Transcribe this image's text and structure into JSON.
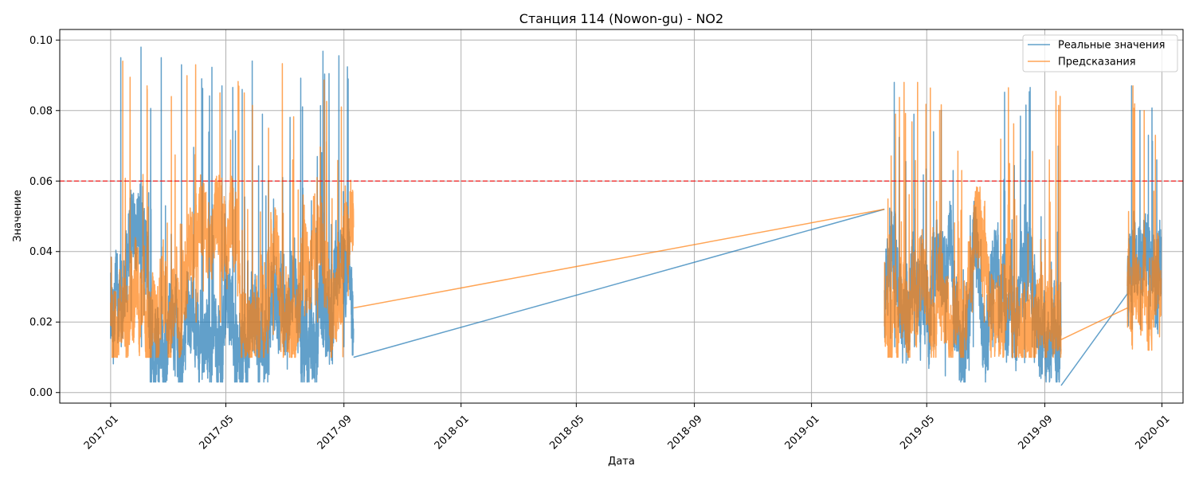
{
  "chart_data": {
    "type": "line",
    "title": "Станция 114 (Nowon-gu) - NO2",
    "xlabel": "Дата",
    "ylabel": "Значение",
    "xlim": [
      "2016-11-09",
      "2020-01-23"
    ],
    "ylim": [
      -0.003,
      0.103
    ],
    "x_ticks": [
      "2017-01",
      "2017-05",
      "2017-09",
      "2018-01",
      "2018-05",
      "2018-09",
      "2019-01",
      "2019-05",
      "2019-09",
      "2020-01"
    ],
    "y_ticks": [
      "0.00",
      "0.02",
      "0.04",
      "0.06",
      "0.08",
      "0.10"
    ],
    "grid": true,
    "legend_position": "top-right",
    "threshold": {
      "y": 0.06,
      "color": "#ff0000",
      "style": "dashed"
    },
    "colors": {
      "actual": "#1f77b4",
      "predicted": "#ff7f0e"
    },
    "series": [
      {
        "name": "Реальные значения",
        "color": "#1f77b4",
        "segments": [
          {
            "start": "2017-01-01",
            "end": "2017-09-11",
            "min": 0.003,
            "max": 0.098,
            "peaks": [
              0.095,
              0.098,
              0.095,
              0.093,
              0.089,
              0.087,
              0.086,
              0.079,
              0.061,
              0.058,
              0.051,
              0.057
            ]
          },
          {
            "start": "2019-03-18",
            "end": "2019-09-18",
            "min": 0.003,
            "max": 0.088,
            "peaks": [
              0.088,
              0.079,
              0.074,
              0.063,
              0.049,
              0.043,
              0.049,
              0.044,
              0.037
            ]
          },
          {
            "start": "2019-11-26",
            "end": "2019-12-31",
            "min": 0.008,
            "max": 0.087,
            "peaks": [
              0.087,
              0.08,
              0.073,
              0.066
            ]
          }
        ],
        "connectors": [
          {
            "from": [
              "2017-09-11",
              0.01
            ],
            "to": [
              "2019-03-18",
              0.052
            ]
          },
          {
            "from": [
              "2019-09-18",
              0.002
            ],
            "to": [
              "2019-11-26",
              0.028
            ]
          }
        ]
      },
      {
        "name": "Предсказания",
        "color": "#ff7f0e",
        "segments": [
          {
            "start": "2017-01-01",
            "end": "2017-09-11",
            "min": 0.01,
            "max": 0.094,
            "peaks": [
              0.094,
              0.087,
              0.084,
              0.093,
              0.085,
              0.085,
              0.075,
              0.066,
              0.061,
              0.081
            ]
          },
          {
            "start": "2019-03-18",
            "end": "2019-09-18",
            "min": 0.01,
            "max": 0.088,
            "peaks": [
              0.079,
              0.088,
              0.08,
              0.063,
              0.049,
              0.042,
              0.045,
              0.054
            ]
          },
          {
            "start": "2019-11-26",
            "end": "2019-12-31",
            "min": 0.012,
            "max": 0.087,
            "peaks": [
              0.087,
              0.08,
              0.073
            ]
          }
        ],
        "connectors": [
          {
            "from": [
              "2017-09-11",
              0.024
            ],
            "to": [
              "2019-03-18",
              0.052
            ]
          },
          {
            "from": [
              "2019-09-18",
              0.015
            ],
            "to": [
              "2019-11-26",
              0.024
            ]
          }
        ]
      }
    ]
  }
}
